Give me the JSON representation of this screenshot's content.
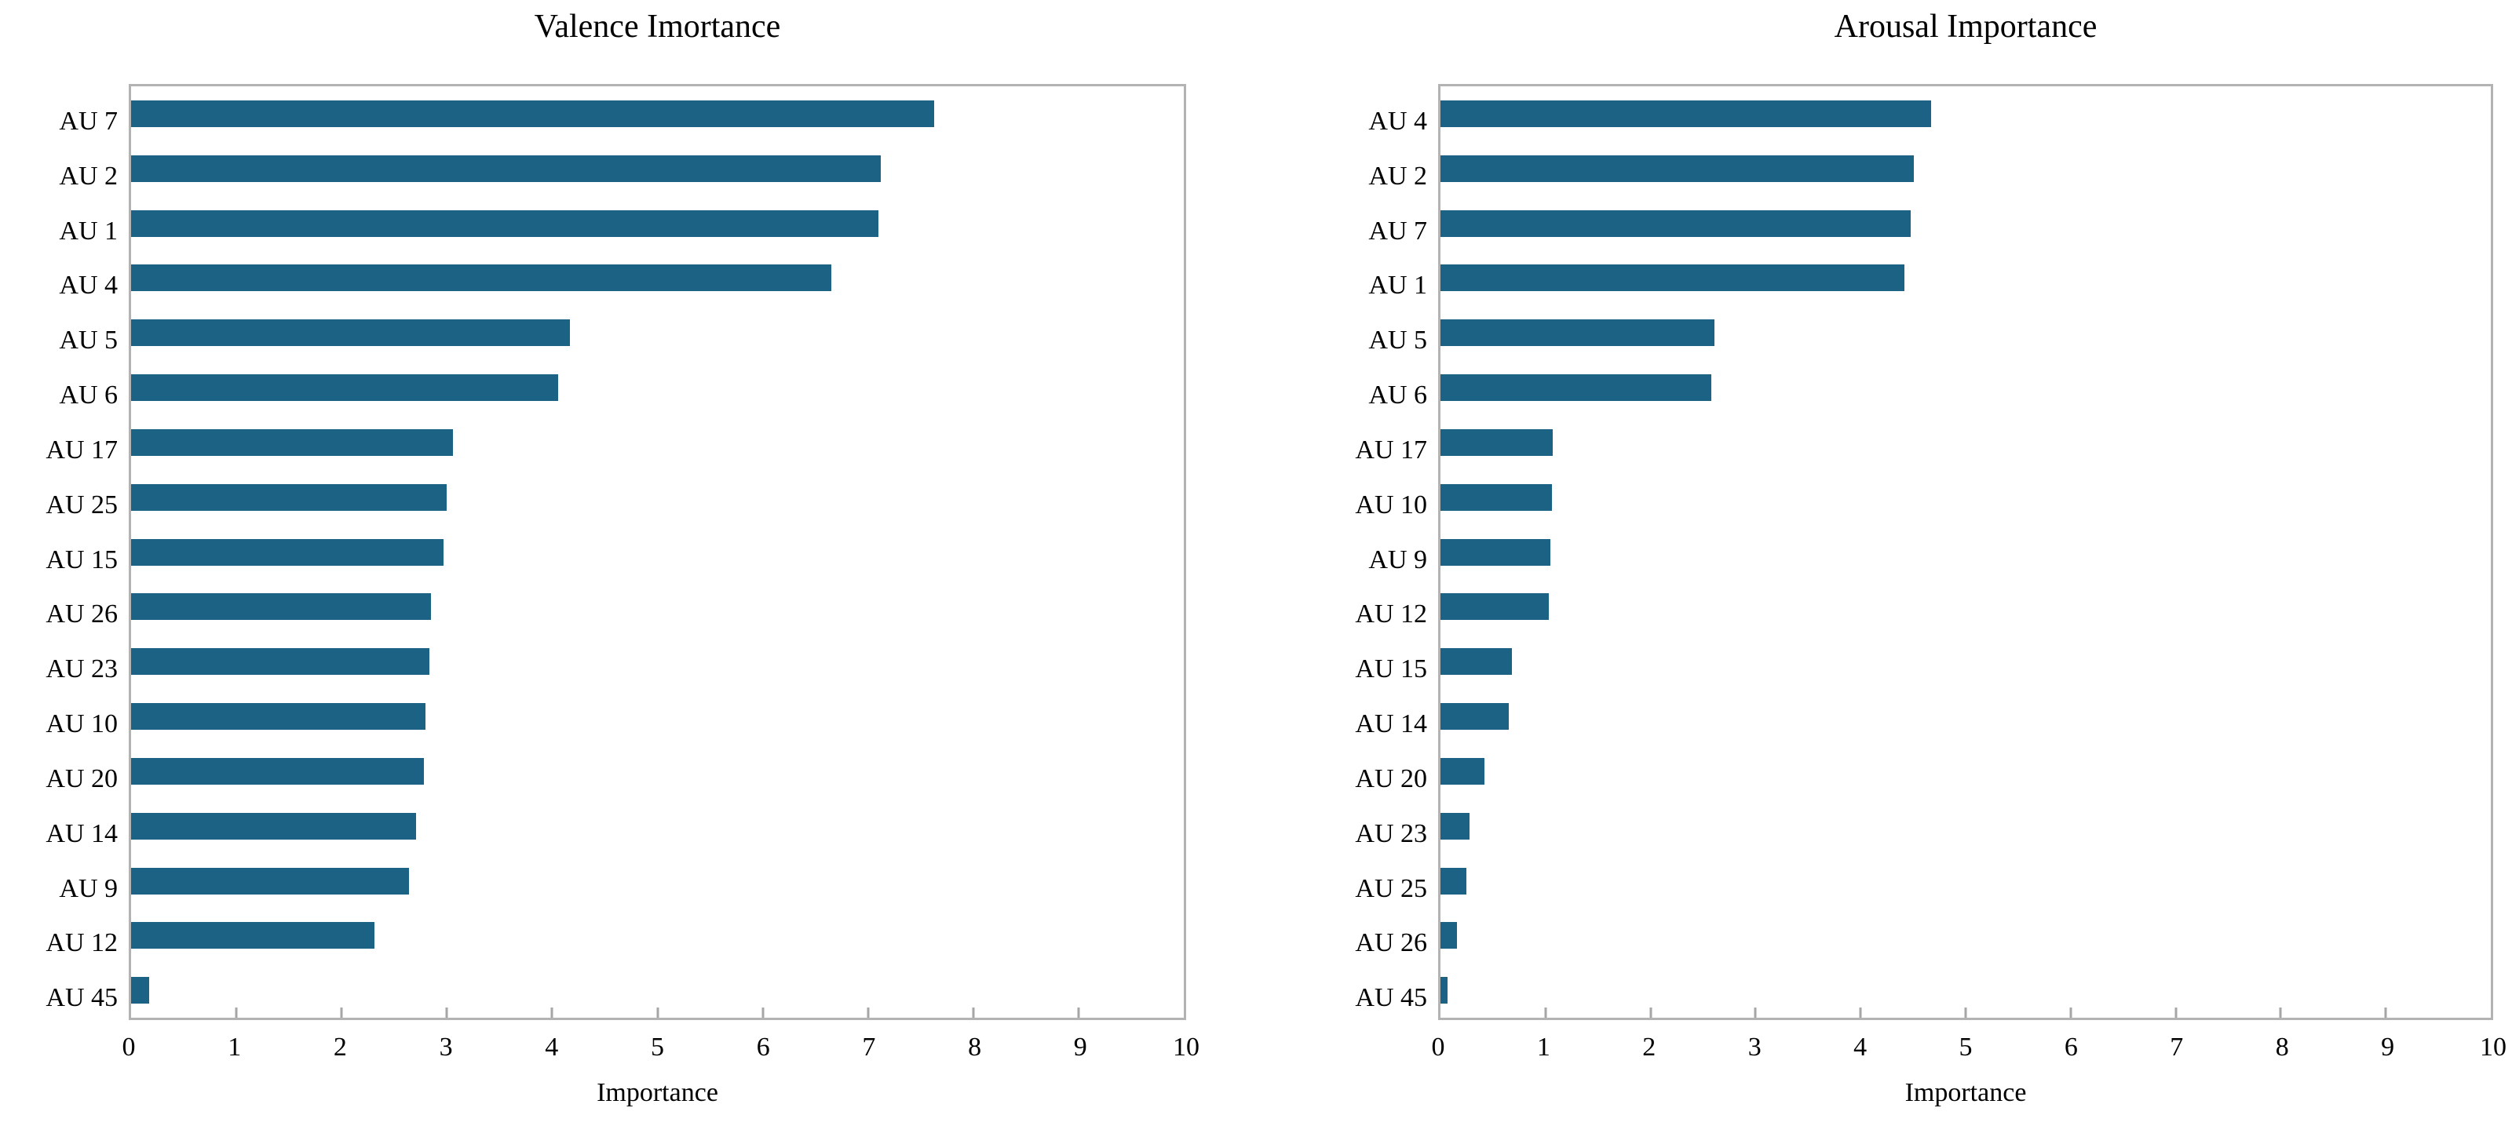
{
  "figure": {
    "background": "#ffffff",
    "axis_border_color": "#b3b3b3",
    "tick_mark_color": "#a6a6a6",
    "bar_color": "#1b6284"
  },
  "chart_data": [
    {
      "type": "bar",
      "orientation": "horizontal",
      "title": "Valence Imortance",
      "xlabel": "Importance",
      "xlim": [
        0,
        10
      ],
      "xticks": [
        0,
        1,
        2,
        3,
        4,
        5,
        6,
        7,
        8,
        9,
        10
      ],
      "grid": false,
      "legend": false,
      "bar_color": "#1b6284",
      "categories": [
        "AU 7",
        "AU 2",
        "AU 1",
        "AU 4",
        "AU 5",
        "AU 6",
        "AU 17",
        "AU 25",
        "AU 15",
        "AU 26",
        "AU 23",
        "AU 10",
        "AU 20",
        "AU 14",
        "AU 9",
        "AU 12",
        "AU 45"
      ],
      "values": [
        7.63,
        7.12,
        7.1,
        6.65,
        4.17,
        4.06,
        3.06,
        3.0,
        2.97,
        2.85,
        2.83,
        2.8,
        2.78,
        2.71,
        2.64,
        2.31,
        0.17
      ]
    },
    {
      "type": "bar",
      "orientation": "horizontal",
      "title": "Arousal Importance",
      "xlabel": "Importance",
      "xlim": [
        0,
        10
      ],
      "xticks": [
        0,
        1,
        2,
        3,
        4,
        5,
        6,
        7,
        8,
        9,
        10
      ],
      "grid": false,
      "legend": false,
      "bar_color": "#1b6284",
      "categories": [
        "AU 4",
        "AU 2",
        "AU 7",
        "AU 1",
        "AU 5",
        "AU 6",
        "AU 17",
        "AU 10",
        "AU 9",
        "AU 12",
        "AU 15",
        "AU 14",
        "AU 20",
        "AU 23",
        "AU 25",
        "AU 26",
        "AU 45"
      ],
      "values": [
        4.67,
        4.51,
        4.48,
        4.42,
        2.61,
        2.58,
        1.07,
        1.06,
        1.05,
        1.03,
        0.68,
        0.65,
        0.42,
        0.28,
        0.25,
        0.16,
        0.07
      ]
    }
  ]
}
